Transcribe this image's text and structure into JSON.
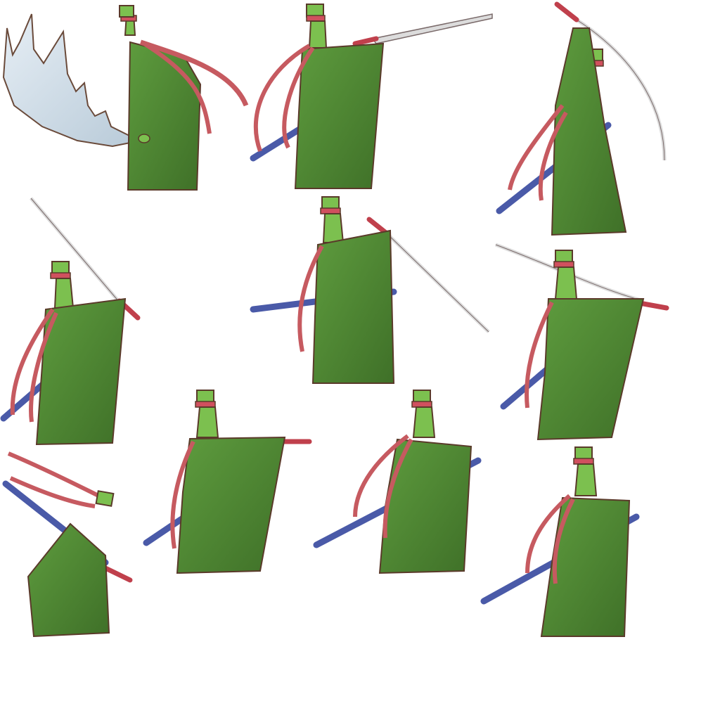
{
  "sprite_sheet": {
    "background": "#ffffff",
    "palette": {
      "robe": "#4f8a33",
      "robe_dark": "#3f7028",
      "robe_light": "#6aa64a",
      "skin": "#7cc04f",
      "outline": "#5a3a2a",
      "hat_band": "#d0505e",
      "ribbon": "#c65a60",
      "sheath": "#4a5aa8",
      "blade": "#dcdcdc",
      "hilt": "#c0404c",
      "slash": "#cfdde8"
    },
    "frames": [
      {
        "pose": "slash-effect",
        "icon": "slash-wave-icon"
      },
      {
        "pose": "thrust-right",
        "icon": "thrust-icon"
      },
      {
        "pose": "sword-raised-overhead",
        "icon": "overhead-icon"
      },
      {
        "pose": "raise-blade-left",
        "icon": "raise-icon"
      },
      {
        "pose": "downward-slash-right",
        "icon": "down-slash-icon"
      },
      {
        "pose": "horizontal-guard",
        "icon": "guard-icon"
      },
      {
        "pose": "crouch-hit",
        "icon": "crouch-icon"
      },
      {
        "pose": "point-forward",
        "icon": "point-icon"
      },
      {
        "pose": "idle-hand-forward",
        "icon": "idle-icon"
      },
      {
        "pose": "idle-stand",
        "icon": "stand-icon"
      }
    ]
  }
}
